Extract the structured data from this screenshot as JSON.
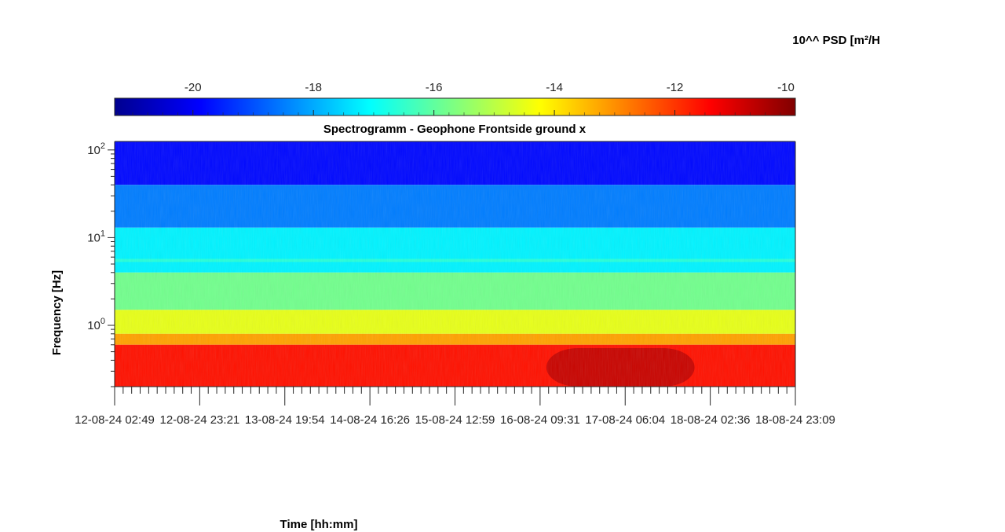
{
  "chart_data": {
    "type": "heatmap",
    "title": "Spectrogramm - Geophone Frontside ground x",
    "xlabel": "Time [hh:mm]",
    "ylabel": "Frequency [Hz]",
    "colorbar": {
      "label": "10^^ PSD [m²/H",
      "ticks": [
        -20,
        -18,
        -16,
        -14,
        -12,
        -10
      ],
      "range": [
        -21.3,
        -10
      ],
      "colormap": "jet",
      "placement": "top"
    },
    "y_scale": "log",
    "y_range_hz": [
      0.2,
      125
    ],
    "y_ticks": [
      {
        "value": 1,
        "base": "10",
        "exp": "0"
      },
      {
        "value": 10,
        "base": "10",
        "exp": "1"
      },
      {
        "value": 100,
        "base": "10",
        "exp": "2"
      }
    ],
    "x_tick_labels": [
      "12-08-24  02:49",
      "12-08-24  23:21",
      "13-08-24  19:54",
      "14-08-24  16:26",
      "15-08-24  12:59",
      "16-08-24  09:31",
      "17-08-24  06:04",
      "18-08-24  02:36",
      "18-08-24  23:09"
    ],
    "bands": [
      {
        "f_min": 40,
        "f_max": 125,
        "psd": -19.8
      },
      {
        "f_min": 13,
        "f_max": 40,
        "psd": -18.5
      },
      {
        "f_min": 4,
        "f_max": 13,
        "psd": -17.2
      },
      {
        "f_min": 1.5,
        "f_max": 4,
        "psd": -15.8
      },
      {
        "f_min": 0.8,
        "f_max": 1.5,
        "psd": -14.5
      },
      {
        "f_min": 0.6,
        "f_max": 0.8,
        "psd": -13.2
      },
      {
        "f_min": 0.2,
        "f_max": 0.6,
        "psd": -11.6
      }
    ],
    "quiet_period": {
      "from_label": "16-08-24  09:31",
      "to_label": "18-08-24  02:36",
      "psd_low_freq": -10.6
    },
    "tonal_line_hz": 5.5
  }
}
